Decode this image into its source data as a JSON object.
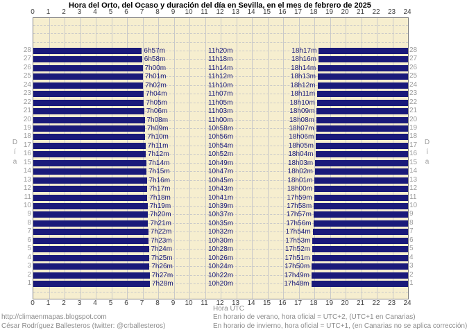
{
  "title": "Hora del Orto, del Ocaso y duración del día en Sevilla, en el mes de febrero de 2025",
  "axes": {
    "x_label_bottom": "Hora UTC",
    "y_label": "Día",
    "x_ticks": [
      0,
      1,
      2,
      3,
      4,
      5,
      6,
      7,
      8,
      9,
      10,
      11,
      12,
      13,
      14,
      15,
      16,
      17,
      18,
      19,
      20,
      21,
      22,
      23,
      24
    ],
    "x_range": [
      0,
      24
    ],
    "y_days_shown": [
      1,
      28
    ]
  },
  "colors": {
    "plot_background": "#f6eecf",
    "night_bar": "#1a1a7a",
    "value_text": "#1a1a7a",
    "grid": "#c9c9c9",
    "axis_tick_text": "#3f3f3f",
    "day_number_text": "#9a9a9a",
    "footer_text": "#8c8c8c"
  },
  "footer": {
    "left_line1": "http://climaenmapas.blogspot.com",
    "left_line2": "César Rodríguez Ballesteros (twitter: @crballesteros)",
    "right_line1": "En horario de verano, hora oficial = UTC+2, (UTC+1 en Canarias)",
    "right_line2": "En horario de invierno, hora oficial = UTC+1, (en Canarias no se aplica corrección)"
  },
  "chart_data": {
    "type": "bar",
    "orientation": "horizontal",
    "title": "Hora del Orto, del Ocaso y duración del día en Sevilla, en el mes de febrero de 2025",
    "xlabel": "Hora UTC",
    "ylabel": "Día",
    "xlim": [
      0,
      24
    ],
    "grid": true,
    "legend": false,
    "note": "Dark bars are night (00h to sunrise, sunset to 24h); labels show sunrise time, day length, sunset time (UTC)",
    "days": [
      {
        "day": 1,
        "sunrise": "7h28m",
        "duration": "10h20m",
        "sunset": "17h48m"
      },
      {
        "day": 2,
        "sunrise": "7h27m",
        "duration": "10h22m",
        "sunset": "17h49m"
      },
      {
        "day": 3,
        "sunrise": "7h26m",
        "duration": "10h24m",
        "sunset": "17h50m"
      },
      {
        "day": 4,
        "sunrise": "7h25m",
        "duration": "10h26m",
        "sunset": "17h51m"
      },
      {
        "day": 5,
        "sunrise": "7h24m",
        "duration": "10h28m",
        "sunset": "17h52m"
      },
      {
        "day": 6,
        "sunrise": "7h23m",
        "duration": "10h30m",
        "sunset": "17h53m"
      },
      {
        "day": 7,
        "sunrise": "7h22m",
        "duration": "10h32m",
        "sunset": "17h54m"
      },
      {
        "day": 8,
        "sunrise": "7h21m",
        "duration": "10h35m",
        "sunset": "17h56m"
      },
      {
        "day": 9,
        "sunrise": "7h20m",
        "duration": "10h37m",
        "sunset": "17h57m"
      },
      {
        "day": 10,
        "sunrise": "7h19m",
        "duration": "10h39m",
        "sunset": "17h58m"
      },
      {
        "day": 11,
        "sunrise": "7h18m",
        "duration": "10h41m",
        "sunset": "17h59m"
      },
      {
        "day": 12,
        "sunrise": "7h17m",
        "duration": "10h43m",
        "sunset": "18h00m"
      },
      {
        "day": 13,
        "sunrise": "7h16m",
        "duration": "10h45m",
        "sunset": "18h01m"
      },
      {
        "day": 14,
        "sunrise": "7h15m",
        "duration": "10h47m",
        "sunset": "18h02m"
      },
      {
        "day": 15,
        "sunrise": "7h14m",
        "duration": "10h49m",
        "sunset": "18h03m"
      },
      {
        "day": 16,
        "sunrise": "7h12m",
        "duration": "10h52m",
        "sunset": "18h04m"
      },
      {
        "day": 17,
        "sunrise": "7h11m",
        "duration": "10h54m",
        "sunset": "18h05m"
      },
      {
        "day": 18,
        "sunrise": "7h10m",
        "duration": "10h56m",
        "sunset": "18h06m"
      },
      {
        "day": 19,
        "sunrise": "7h09m",
        "duration": "10h58m",
        "sunset": "18h07m"
      },
      {
        "day": 20,
        "sunrise": "7h08m",
        "duration": "11h00m",
        "sunset": "18h08m"
      },
      {
        "day": 21,
        "sunrise": "7h06m",
        "duration": "11h03m",
        "sunset": "18h09m"
      },
      {
        "day": 22,
        "sunrise": "7h05m",
        "duration": "11h05m",
        "sunset": "18h10m"
      },
      {
        "day": 23,
        "sunrise": "7h04m",
        "duration": "11h07m",
        "sunset": "18h11m"
      },
      {
        "day": 24,
        "sunrise": "7h02m",
        "duration": "11h10m",
        "sunset": "18h12m"
      },
      {
        "day": 25,
        "sunrise": "7h01m",
        "duration": "11h12m",
        "sunset": "18h13m"
      },
      {
        "day": 26,
        "sunrise": "7h00m",
        "duration": "11h14m",
        "sunset": "18h14m"
      },
      {
        "day": 27,
        "sunrise": "6h58m",
        "duration": "11h18m",
        "sunset": "18h16m"
      },
      {
        "day": 28,
        "sunrise": "6h57m",
        "duration": "11h20m",
        "sunset": "18h17m"
      }
    ]
  }
}
